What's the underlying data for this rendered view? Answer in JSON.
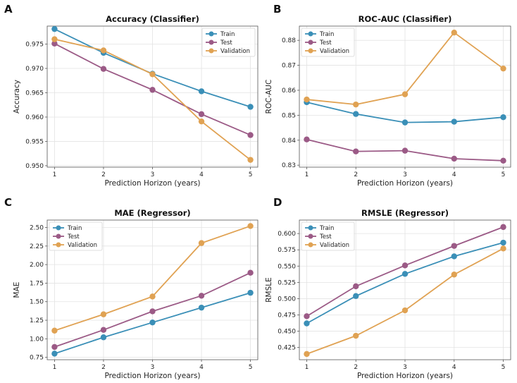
{
  "colors": {
    "train": "#3a8fb7",
    "test": "#9b5a86",
    "validation": "#e0a253"
  },
  "chart_data": [
    {
      "type": "line",
      "panel": "A",
      "title": "Accuracy (Classifier)",
      "xlabel": "Prediction Horizon (years)",
      "ylabel": "Accuracy",
      "x": [
        1,
        2,
        3,
        4,
        5
      ],
      "xlim": [
        0.85,
        5.15
      ],
      "ylim": [
        0.9497,
        0.9787
      ],
      "yticks": [
        0.95,
        0.955,
        0.96,
        0.965,
        0.97,
        0.975
      ],
      "ytick_labels": [
        "0.950",
        "0.955",
        "0.960",
        "0.965",
        "0.970",
        "0.975"
      ],
      "grid": true,
      "legend": "top-right",
      "series": [
        {
          "name": "Train",
          "color_key": "train",
          "values": [
            0.9781,
            0.9732,
            0.9689,
            0.9653,
            0.9621
          ]
        },
        {
          "name": "Test",
          "color_key": "test",
          "values": [
            0.9751,
            0.9699,
            0.9656,
            0.9606,
            0.9563
          ]
        },
        {
          "name": "Validation",
          "color_key": "validation",
          "values": [
            0.976,
            0.9737,
            0.9688,
            0.9591,
            0.9512
          ]
        }
      ]
    },
    {
      "type": "line",
      "panel": "B",
      "title": "ROC-AUC (Classifier)",
      "xlabel": "Prediction Horizon (years)",
      "ylabel": "ROC-AUC",
      "x": [
        1,
        2,
        3,
        4,
        5
      ],
      "xlim": [
        0.85,
        5.15
      ],
      "ylim": [
        0.8292,
        0.8857
      ],
      "yticks": [
        0.83,
        0.84,
        0.85,
        0.86,
        0.87,
        0.88
      ],
      "ytick_labels": [
        "0.83",
        "0.84",
        "0.85",
        "0.86",
        "0.87",
        "0.88"
      ],
      "grid": true,
      "legend": "top-left",
      "series": [
        {
          "name": "Train",
          "color_key": "train",
          "values": [
            0.8552,
            0.8505,
            0.8471,
            0.8474,
            0.8492
          ]
        },
        {
          "name": "Test",
          "color_key": "test",
          "values": [
            0.8403,
            0.8355,
            0.8358,
            0.8326,
            0.8318
          ]
        },
        {
          "name": "Validation",
          "color_key": "validation",
          "values": [
            0.8563,
            0.8543,
            0.8584,
            0.8831,
            0.8687
          ]
        }
      ]
    },
    {
      "type": "line",
      "panel": "C",
      "title": "MAE (Regressor)",
      "xlabel": "Prediction Horizon (years)",
      "ylabel": "MAE",
      "x": [
        1,
        2,
        3,
        4,
        5
      ],
      "xlim": [
        0.85,
        5.15
      ],
      "ylim": [
        0.718,
        2.6
      ],
      "yticks": [
        0.75,
        1.0,
        1.25,
        1.5,
        1.75,
        2.0,
        2.25,
        2.5
      ],
      "ytick_labels": [
        "0.75",
        "1.00",
        "1.25",
        "1.50",
        "1.75",
        "2.00",
        "2.25",
        "2.50"
      ],
      "grid": true,
      "legend": "top-left",
      "series": [
        {
          "name": "Train",
          "color_key": "train",
          "values": [
            0.8,
            1.02,
            1.22,
            1.42,
            1.62
          ]
        },
        {
          "name": "Test",
          "color_key": "test",
          "values": [
            0.89,
            1.12,
            1.37,
            1.58,
            1.89
          ]
        },
        {
          "name": "Validation",
          "color_key": "validation",
          "values": [
            1.11,
            1.33,
            1.57,
            2.29,
            2.52
          ]
        }
      ]
    },
    {
      "type": "line",
      "panel": "D",
      "title": "RMSLE (Regressor)",
      "xlabel": "Prediction Horizon (years)",
      "ylabel": "RMSLE",
      "x": [
        1,
        2,
        3,
        4,
        5
      ],
      "xlim": [
        0.85,
        5.15
      ],
      "ylim": [
        0.4062,
        0.6207
      ],
      "yticks": [
        0.425,
        0.45,
        0.475,
        0.5,
        0.525,
        0.55,
        0.575,
        0.6
      ],
      "ytick_labels": [
        "0.425",
        "0.450",
        "0.475",
        "0.500",
        "0.525",
        "0.550",
        "0.575",
        "0.600"
      ],
      "grid": true,
      "legend": "top-left",
      "series": [
        {
          "name": "Train",
          "color_key": "train",
          "values": [
            0.462,
            0.504,
            0.538,
            0.565,
            0.586
          ]
        },
        {
          "name": "Test",
          "color_key": "test",
          "values": [
            0.473,
            0.519,
            0.551,
            0.581,
            0.61
          ]
        },
        {
          "name": "Validation",
          "color_key": "validation",
          "values": [
            0.415,
            0.443,
            0.482,
            0.537,
            0.577
          ]
        }
      ]
    }
  ]
}
